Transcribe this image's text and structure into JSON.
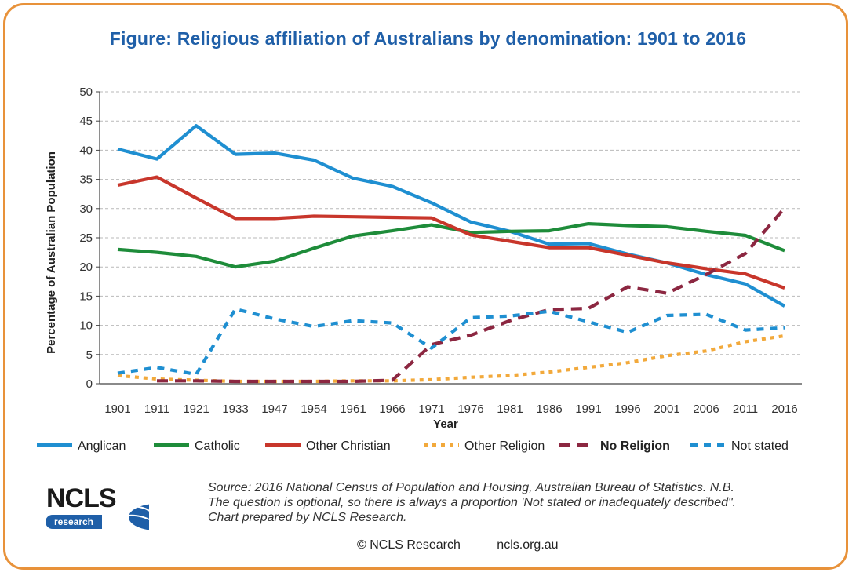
{
  "title": "Figure: Religious affiliation of Australians by denomination: 1901 to 2016",
  "source_text": "Source: 2016 National Census of Population and Housing, Australian Bureau of Statistics. N.B. The question is optional, so there is always a proportion 'Not stated or inadequately described\". Chart prepared by NCLS Research.",
  "footer": {
    "copyright": "© NCLS Research",
    "url": "ncls.org.au"
  },
  "logo": {
    "main": "NCLS",
    "sub": "research"
  },
  "colors": {
    "border": "#e8923a",
    "title": "#1f5fa8"
  },
  "chart_data": {
    "type": "line",
    "xlabel": "Year",
    "ylabel": "Percentage of Australian Population",
    "ylim": [
      0,
      50
    ],
    "yticks": [
      0,
      5,
      10,
      15,
      20,
      25,
      30,
      35,
      40,
      45,
      50
    ],
    "grid": true,
    "legend_position": "bottom",
    "categories": [
      "1901",
      "1911",
      "1921",
      "1933",
      "1947",
      "1954",
      "1961",
      "1966",
      "1971",
      "1976",
      "1981",
      "1986",
      "1991",
      "1996",
      "2001",
      "2006",
      "2011",
      "2016"
    ],
    "series": [
      {
        "name": "Anglican",
        "color": "#1f8fd1",
        "style": "solid",
        "values": [
          40.2,
          38.5,
          44.2,
          39.3,
          39.5,
          38.3,
          35.2,
          33.8,
          31.0,
          27.7,
          26.1,
          23.9,
          24.0,
          22.2,
          20.7,
          18.7,
          17.1,
          13.3
        ]
      },
      {
        "name": "Catholic",
        "color": "#1e8c3a",
        "style": "solid",
        "values": [
          23.0,
          22.5,
          21.8,
          20.0,
          21.0,
          23.2,
          25.3,
          26.2,
          27.2,
          25.9,
          26.1,
          26.2,
          27.4,
          27.1,
          26.9,
          26.1,
          25.4,
          22.8
        ]
      },
      {
        "name": "Other Christian",
        "color": "#c8362b",
        "style": "solid",
        "values": [
          34.0,
          35.4,
          31.8,
          28.3,
          28.3,
          28.7,
          28.6,
          28.5,
          28.4,
          25.5,
          24.4,
          23.3,
          23.3,
          22.0,
          20.7,
          19.7,
          18.8,
          16.4
        ]
      },
      {
        "name": "Other Religion",
        "color": "#f2a93b",
        "style": "dotted",
        "values": [
          1.4,
          0.8,
          0.6,
          0.4,
          0.4,
          0.4,
          0.5,
          0.5,
          0.7,
          1.1,
          1.4,
          2.0,
          2.8,
          3.6,
          4.8,
          5.6,
          7.2,
          8.2
        ]
      },
      {
        "name": "No Religion",
        "color": "#8c2741",
        "style": "dashed",
        "values": [
          null,
          0.5,
          0.5,
          0.4,
          0.4,
          0.4,
          0.4,
          0.6,
          6.7,
          8.3,
          10.8,
          12.7,
          12.9,
          16.6,
          15.5,
          18.7,
          22.3,
          30.1
        ]
      },
      {
        "name": "Not stated",
        "color": "#1f8fd1",
        "style": "dashed-short",
        "values": [
          1.8,
          2.8,
          1.6,
          12.8,
          11.1,
          9.8,
          10.8,
          10.4,
          6.1,
          11.3,
          11.6,
          12.4,
          10.6,
          8.8,
          11.7,
          11.9,
          9.2,
          9.6
        ]
      }
    ]
  }
}
